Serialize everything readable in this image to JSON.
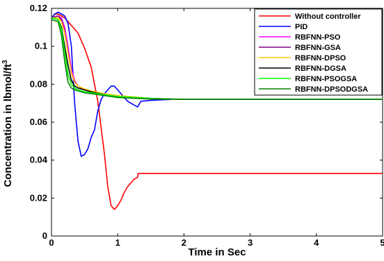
{
  "chart_data": {
    "type": "line",
    "title": "",
    "xlabel": "Time in Sec",
    "ylabel": "Concentration in lbmol/ft",
    "ylabel_superscript": "3",
    "xlim": [
      0,
      5
    ],
    "ylim": [
      0,
      0.12
    ],
    "xticks": [
      "0",
      "1",
      "2",
      "3",
      "4",
      "5"
    ],
    "yticks": [
      "0",
      "0.02",
      "0.04",
      "0.06",
      "0.08",
      "0.1",
      "0.12"
    ],
    "grid": false,
    "legend_position": "top-right",
    "series": [
      {
        "name": "Without controller",
        "color": "#ff0000",
        "x": [
          0,
          0.05,
          0.1,
          0.2,
          0.3,
          0.4,
          0.5,
          0.6,
          0.7,
          0.8,
          0.85,
          0.9,
          0.95,
          1.0,
          1.05,
          1.1,
          1.15,
          1.2,
          1.25,
          1.3,
          1.31,
          1.4,
          1.6,
          2.0,
          3.0,
          4.0,
          5.0
        ],
        "y": [
          0.115,
          0.117,
          0.117,
          0.115,
          0.111,
          0.107,
          0.099,
          0.089,
          0.071,
          0.043,
          0.026,
          0.016,
          0.014,
          0.016,
          0.019,
          0.023,
          0.026,
          0.028,
          0.03,
          0.031,
          0.033,
          0.033,
          0.033,
          0.033,
          0.033,
          0.033,
          0.033
        ]
      },
      {
        "name": "PID",
        "color": "#0000ff",
        "x": [
          0,
          0.05,
          0.1,
          0.2,
          0.25,
          0.3,
          0.35,
          0.4,
          0.45,
          0.5,
          0.55,
          0.6,
          0.65,
          0.7,
          0.75,
          0.8,
          0.85,
          0.9,
          0.95,
          1.0,
          1.05,
          1.1,
          1.15,
          1.2,
          1.25,
          1.3,
          1.35,
          1.5,
          1.8
        ],
        "y": [
          0.115,
          0.117,
          0.118,
          0.116,
          0.112,
          0.1,
          0.07,
          0.05,
          0.042,
          0.043,
          0.046,
          0.052,
          0.056,
          0.066,
          0.072,
          0.075,
          0.077,
          0.079,
          0.079,
          0.077,
          0.075,
          0.073,
          0.071,
          0.07,
          0.069,
          0.068,
          0.071,
          0.0715,
          0.072
        ]
      },
      {
        "name": "RBFNN-PSO",
        "color": "#ff00ff",
        "x": [
          0,
          0.1,
          0.15,
          0.2,
          0.25,
          0.3,
          0.35,
          0.4,
          0.5,
          0.6,
          0.8,
          1.0,
          1.5,
          2.0,
          3.0,
          4.0,
          5.0
        ],
        "y": [
          0.115,
          0.116,
          0.115,
          0.11,
          0.1,
          0.088,
          0.082,
          0.079,
          0.077,
          0.076,
          0.0745,
          0.0735,
          0.0725,
          0.072,
          0.072,
          0.072,
          0.072
        ]
      },
      {
        "name": "RBFNN-GSA",
        "color": "#800080",
        "x": [
          0,
          0.1,
          0.15,
          0.2,
          0.25,
          0.3,
          0.35,
          0.4,
          0.5,
          0.6,
          0.8,
          1.0,
          1.5,
          2.0,
          3.0,
          4.0,
          5.0
        ],
        "y": [
          0.115,
          0.116,
          0.114,
          0.108,
          0.097,
          0.086,
          0.081,
          0.079,
          0.077,
          0.076,
          0.0745,
          0.0735,
          0.0725,
          0.072,
          0.072,
          0.072,
          0.072
        ]
      },
      {
        "name": "RBFNN-DPSO",
        "color": "#ffcc00",
        "x": [
          0,
          0.1,
          0.15,
          0.2,
          0.25,
          0.3,
          0.35,
          0.4,
          0.5,
          0.6,
          0.8,
          1.0,
          1.5,
          2.0,
          3.0,
          4.0,
          5.0
        ],
        "y": [
          0.115,
          0.115,
          0.113,
          0.107,
          0.096,
          0.086,
          0.081,
          0.079,
          0.0775,
          0.0765,
          0.075,
          0.074,
          0.0725,
          0.072,
          0.072,
          0.072,
          0.072
        ]
      },
      {
        "name": "RBFNN-DGSA",
        "color": "#000000",
        "x": [
          0,
          0.1,
          0.15,
          0.2,
          0.25,
          0.3,
          0.35,
          0.4,
          0.5,
          0.6,
          0.8,
          1.0,
          1.5,
          2.0,
          3.0,
          4.0,
          5.0
        ],
        "y": [
          0.115,
          0.114,
          0.11,
          0.1,
          0.09,
          0.082,
          0.079,
          0.078,
          0.077,
          0.076,
          0.0745,
          0.0735,
          0.0725,
          0.072,
          0.072,
          0.072,
          0.072
        ]
      },
      {
        "name": "RBFNN-PSOGSA",
        "color": "#00ff00",
        "x": [
          0,
          0.1,
          0.15,
          0.2,
          0.25,
          0.3,
          0.35,
          0.4,
          0.5,
          0.6,
          0.8,
          1.0,
          1.5,
          2.0,
          3.0,
          4.0,
          5.0
        ],
        "y": [
          0.115,
          0.114,
          0.109,
          0.097,
          0.085,
          0.08,
          0.078,
          0.077,
          0.076,
          0.0755,
          0.0745,
          0.0735,
          0.0725,
          0.072,
          0.072,
          0.072,
          0.072
        ]
      },
      {
        "name": "RBFNN-DPSODGSA",
        "color": "#008000",
        "x": [
          0,
          0.1,
          0.15,
          0.2,
          0.25,
          0.3,
          0.35,
          0.4,
          0.5,
          0.6,
          0.8,
          1.0,
          1.5,
          2.0,
          3.0,
          4.0,
          5.0
        ],
        "y": [
          0.114,
          0.113,
          0.106,
          0.092,
          0.081,
          0.078,
          0.077,
          0.0765,
          0.0755,
          0.075,
          0.074,
          0.073,
          0.0722,
          0.072,
          0.072,
          0.072,
          0.072
        ]
      }
    ]
  }
}
